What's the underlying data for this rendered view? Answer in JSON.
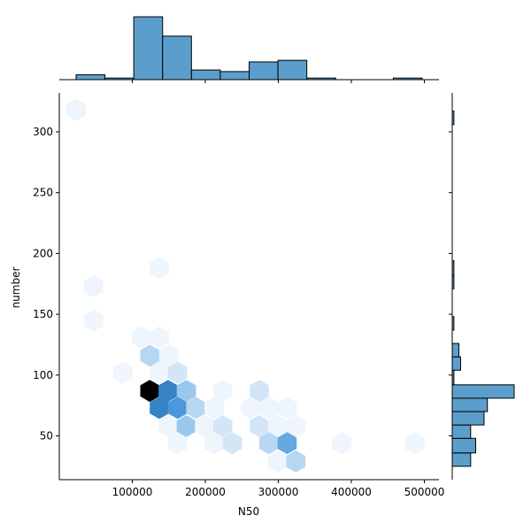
{
  "chart_data": {
    "type": "hexbin-joint",
    "xlabel": "N50",
    "ylabel": "number",
    "xlim": [
      0,
      520000
    ],
    "ylim": [
      14,
      332
    ],
    "xticks": [
      100000,
      200000,
      300000,
      400000,
      500000
    ],
    "xtick_labels": [
      "100000",
      "200000",
      "300000",
      "400000",
      "500000"
    ],
    "yticks": [
      50,
      100,
      150,
      200,
      250,
      300
    ],
    "ytick_labels": [
      "50",
      "100",
      "150",
      "200",
      "250",
      "300"
    ],
    "hexbins": [
      {
        "x": 23000,
        "y": 318,
        "count": 1
      },
      {
        "x": 47000,
        "y": 173,
        "count": 1
      },
      {
        "x": 47000,
        "y": 145,
        "count": 1
      },
      {
        "x": 137000,
        "y": 188,
        "count": 1
      },
      {
        "x": 87000,
        "y": 102,
        "count": 1
      },
      {
        "x": 112000,
        "y": 131,
        "count": 1
      },
      {
        "x": 137000,
        "y": 131,
        "count": 1
      },
      {
        "x": 124000,
        "y": 116,
        "count": 3
      },
      {
        "x": 150000,
        "y": 116,
        "count": 1
      },
      {
        "x": 137000,
        "y": 102,
        "count": 1
      },
      {
        "x": 162000,
        "y": 102,
        "count": 2
      },
      {
        "x": 124000,
        "y": 87,
        "count": 12
      },
      {
        "x": 149000,
        "y": 87,
        "count": 8
      },
      {
        "x": 174000,
        "y": 87,
        "count": 4
      },
      {
        "x": 224000,
        "y": 87,
        "count": 1
      },
      {
        "x": 274000,
        "y": 87,
        "count": 2
      },
      {
        "x": 137000,
        "y": 73,
        "count": 8
      },
      {
        "x": 162000,
        "y": 73,
        "count": 7
      },
      {
        "x": 187000,
        "y": 73,
        "count": 3
      },
      {
        "x": 212000,
        "y": 73,
        "count": 1
      },
      {
        "x": 262000,
        "y": 73,
        "count": 1
      },
      {
        "x": 287000,
        "y": 73,
        "count": 1
      },
      {
        "x": 312000,
        "y": 73,
        "count": 1
      },
      {
        "x": 149000,
        "y": 58,
        "count": 1
      },
      {
        "x": 174000,
        "y": 58,
        "count": 4
      },
      {
        "x": 199000,
        "y": 58,
        "count": 1
      },
      {
        "x": 224000,
        "y": 58,
        "count": 2
      },
      {
        "x": 274000,
        "y": 58,
        "count": 2
      },
      {
        "x": 299000,
        "y": 58,
        "count": 1
      },
      {
        "x": 324000,
        "y": 58,
        "count": 1
      },
      {
        "x": 162000,
        "y": 44,
        "count": 1
      },
      {
        "x": 212000,
        "y": 44,
        "count": 1
      },
      {
        "x": 237000,
        "y": 44,
        "count": 2
      },
      {
        "x": 287000,
        "y": 44,
        "count": 3
      },
      {
        "x": 312000,
        "y": 44,
        "count": 6
      },
      {
        "x": 387000,
        "y": 44,
        "count": 1
      },
      {
        "x": 487000,
        "y": 44,
        "count": 1
      },
      {
        "x": 299000,
        "y": 29,
        "count": 1
      },
      {
        "x": 324000,
        "y": 29,
        "count": 3
      }
    ],
    "hex_color_scale": {
      "low": "#eef5fc",
      "mid": "#3a8fd8",
      "high": "#000000",
      "max_count": 12
    },
    "marginal_x_hist": {
      "color": "#5b9ecb",
      "edges": [
        23000,
        62500,
        102000,
        141500,
        181000,
        220500,
        260000,
        299500,
        339000,
        378500,
        418000,
        457500,
        497000
      ],
      "counts": [
        3,
        1,
        39,
        27,
        6,
        5,
        11,
        12,
        1,
        0,
        0,
        1
      ]
    },
    "marginal_y_hist": {
      "color": "#5b9ecb",
      "bins": [
        {
          "lo": 25,
          "hi": 36,
          "count": 11
        },
        {
          "lo": 36,
          "hi": 48,
          "count": 14
        },
        {
          "lo": 48,
          "hi": 59,
          "count": 11
        },
        {
          "lo": 59,
          "hi": 70,
          "count": 19
        },
        {
          "lo": 70,
          "hi": 81,
          "count": 21
        },
        {
          "lo": 81,
          "hi": 92,
          "count": 37
        },
        {
          "lo": 92,
          "hi": 104,
          "count": 1
        },
        {
          "lo": 104,
          "hi": 115,
          "count": 5
        },
        {
          "lo": 115,
          "hi": 126,
          "count": 4
        },
        {
          "lo": 126,
          "hi": 137,
          "count": 0
        },
        {
          "lo": 137,
          "hi": 148,
          "count": 1
        },
        {
          "lo": 171,
          "hi": 182,
          "count": 1
        },
        {
          "lo": 182,
          "hi": 194,
          "count": 1
        },
        {
          "lo": 306,
          "hi": 317,
          "count": 1
        }
      ]
    }
  }
}
